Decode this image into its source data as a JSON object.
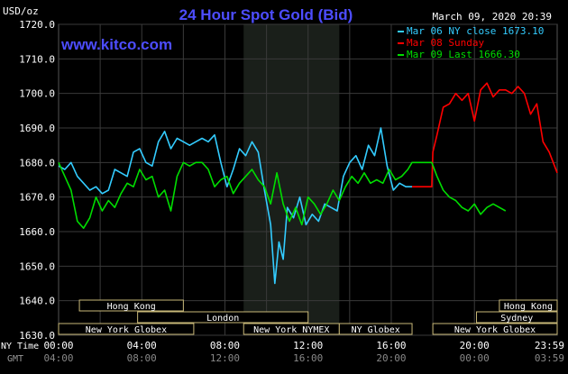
{
  "title": "24 Hour Spot Gold (Bid)",
  "watermark": "www.kitco.com",
  "timestamp": "March 09, 2020 20:39",
  "axis_unit": "USD/oz",
  "colors": {
    "background": "#000000",
    "grid": "#3a3a3a",
    "title": "#4d4dff",
    "ny_close": "#33ccff",
    "sunday": "#ff0000",
    "last": "#00dd00",
    "session_box": "#c8b878",
    "ny_session_shade": "#1a1f1a"
  },
  "legend": [
    {
      "label": "Mar 06 NY close 1673.10",
      "color": "#33ccff"
    },
    {
      "label": "Mar 08 Sunday",
      "color": "#ff0000"
    },
    {
      "label": "Mar 09 Last 1666.30",
      "color": "#00dd00"
    }
  ],
  "bottom_labels": {
    "ny_time": "NY Time",
    "gmt": "GMT"
  },
  "x_ticks": [
    {
      "ny": "00:00",
      "gmt": "04:00",
      "h": 0
    },
    {
      "ny": "04:00",
      "gmt": "08:00",
      "h": 4
    },
    {
      "ny": "08:00",
      "gmt": "12:00",
      "h": 8
    },
    {
      "ny": "12:00",
      "gmt": "16:00",
      "h": 12
    },
    {
      "ny": "16:00",
      "gmt": "20:00",
      "h": 16
    },
    {
      "ny": "20:00",
      "gmt": "00:00",
      "h": 20
    },
    {
      "ny": "23:59",
      "gmt": "03:59",
      "h": 23.98
    }
  ],
  "sessions": [
    {
      "label": "Hong Kong",
      "start": 1,
      "end": 6,
      "row": 0
    },
    {
      "label": "Hong Kong",
      "start": 21.2,
      "end": 24,
      "row": 0
    },
    {
      "label": "London",
      "start": 3.8,
      "end": 12,
      "row": 1
    },
    {
      "label": "Sydney",
      "start": 20.1,
      "end": 24,
      "row": 1
    },
    {
      "label": "New York Globex",
      "start": 0,
      "end": 6.5,
      "row": 2
    },
    {
      "label": "New York NYMEX",
      "start": 8.9,
      "end": 13.5,
      "row": 2
    },
    {
      "label": "NY Globex",
      "start": 13.5,
      "end": 17,
      "row": 2
    },
    {
      "label": "New York Globex",
      "start": 18,
      "end": 24,
      "row": 2
    }
  ],
  "chart_data": {
    "type": "line",
    "title": "24 Hour Spot Gold (Bid)",
    "ylabel": "USD/oz",
    "xlabel": "NY Time",
    "ylim": [
      1630,
      1720
    ],
    "xlim": [
      0,
      23.98
    ],
    "y_ticks": [
      1630.0,
      1640.0,
      1650.0,
      1660.0,
      1670.0,
      1680.0,
      1690.0,
      1700.0,
      1710.0,
      1720.0
    ],
    "grid": true,
    "legend_position": "top-right",
    "shaded_region": [
      8.9,
      13.5
    ],
    "series": [
      {
        "name": "Mar 06 NY close 1673.10",
        "color": "#33ccff",
        "x": [
          0,
          0.3,
          0.6,
          0.9,
          1.2,
          1.5,
          1.8,
          2.1,
          2.4,
          2.7,
          3.0,
          3.3,
          3.6,
          3.9,
          4.2,
          4.5,
          4.8,
          5.1,
          5.4,
          5.7,
          6.0,
          6.3,
          6.6,
          6.9,
          7.2,
          7.5,
          7.8,
          8.1,
          8.4,
          8.7,
          9.0,
          9.3,
          9.6,
          9.9,
          10.2,
          10.4,
          10.6,
          10.8,
          11.0,
          11.3,
          11.6,
          11.9,
          12.2,
          12.5,
          12.8,
          13.1,
          13.4,
          13.7,
          14.0,
          14.3,
          14.6,
          14.9,
          15.2,
          15.5,
          15.8,
          16.1,
          16.4,
          16.7,
          17.0
        ],
        "y": [
          1679,
          1678,
          1680,
          1676,
          1674,
          1672,
          1673,
          1671,
          1672,
          1678,
          1677,
          1676,
          1683,
          1684,
          1680,
          1679,
          1686,
          1689,
          1684,
          1687,
          1686,
          1685,
          1686,
          1687,
          1686,
          1688,
          1680,
          1673,
          1678,
          1684,
          1682,
          1686,
          1683,
          1672,
          1662,
          1645,
          1657,
          1652,
          1667,
          1664,
          1670,
          1662,
          1665,
          1663,
          1668,
          1667,
          1666,
          1676,
          1680,
          1682,
          1678,
          1685,
          1682,
          1690,
          1679,
          1672,
          1674,
          1673,
          1673
        ]
      },
      {
        "name": "Mar 08 Sunday",
        "color": "#ff0000",
        "x": [
          17.0,
          17.5,
          17.95,
          18.0,
          18.2,
          18.5,
          18.8,
          19.1,
          19.4,
          19.7,
          20.0,
          20.3,
          20.6,
          20.9,
          21.2,
          21.5,
          21.8,
          22.1,
          22.4,
          22.7,
          23.0,
          23.3,
          23.6,
          23.98
        ],
        "y": [
          1673,
          1673,
          1673,
          1683,
          1688,
          1696,
          1697,
          1700,
          1698,
          1700,
          1692,
          1701,
          1703,
          1699,
          1701,
          1701,
          1700,
          1702,
          1700,
          1694,
          1697,
          1686,
          1683,
          1677
        ]
      },
      {
        "name": "Mar 09 Last 1666.30",
        "color": "#00dd00",
        "x": [
          0,
          0.3,
          0.6,
          0.9,
          1.2,
          1.5,
          1.8,
          2.1,
          2.4,
          2.7,
          3.0,
          3.3,
          3.6,
          3.9,
          4.2,
          4.5,
          4.8,
          5.1,
          5.4,
          5.7,
          6.0,
          6.3,
          6.6,
          6.9,
          7.2,
          7.5,
          7.8,
          8.1,
          8.4,
          8.7,
          9.0,
          9.3,
          9.6,
          9.9,
          10.2,
          10.5,
          10.8,
          11.1,
          11.4,
          11.7,
          12.0,
          12.3,
          12.6,
          12.9,
          13.2,
          13.5,
          13.8,
          14.1,
          14.4,
          14.7,
          15.0,
          15.3,
          15.6,
          15.9,
          16.2,
          16.5,
          16.8,
          17.0,
          17.5,
          17.95,
          18.2,
          18.5,
          18.8,
          19.1,
          19.4,
          19.7,
          20.0,
          20.3,
          20.6,
          20.9,
          21.2,
          21.5
        ],
        "y": [
          1680,
          1676,
          1672,
          1663,
          1661,
          1664,
          1670,
          1666,
          1669,
          1667,
          1671,
          1674,
          1673,
          1678,
          1675,
          1676,
          1670,
          1672,
          1666,
          1676,
          1680,
          1679,
          1680,
          1680,
          1678,
          1673,
          1675,
          1676,
          1671,
          1674,
          1676,
          1678,
          1675,
          1673,
          1668,
          1677,
          1668,
          1663,
          1667,
          1662,
          1670,
          1668,
          1665,
          1668,
          1672,
          1669,
          1673,
          1676,
          1674,
          1677,
          1674,
          1675,
          1674,
          1678,
          1675,
          1676,
          1678,
          1680,
          1680,
          1680,
          1676,
          1672,
          1670,
          1669,
          1667,
          1666,
          1668,
          1665,
          1667,
          1668,
          1667,
          1666
        ]
      }
    ]
  }
}
